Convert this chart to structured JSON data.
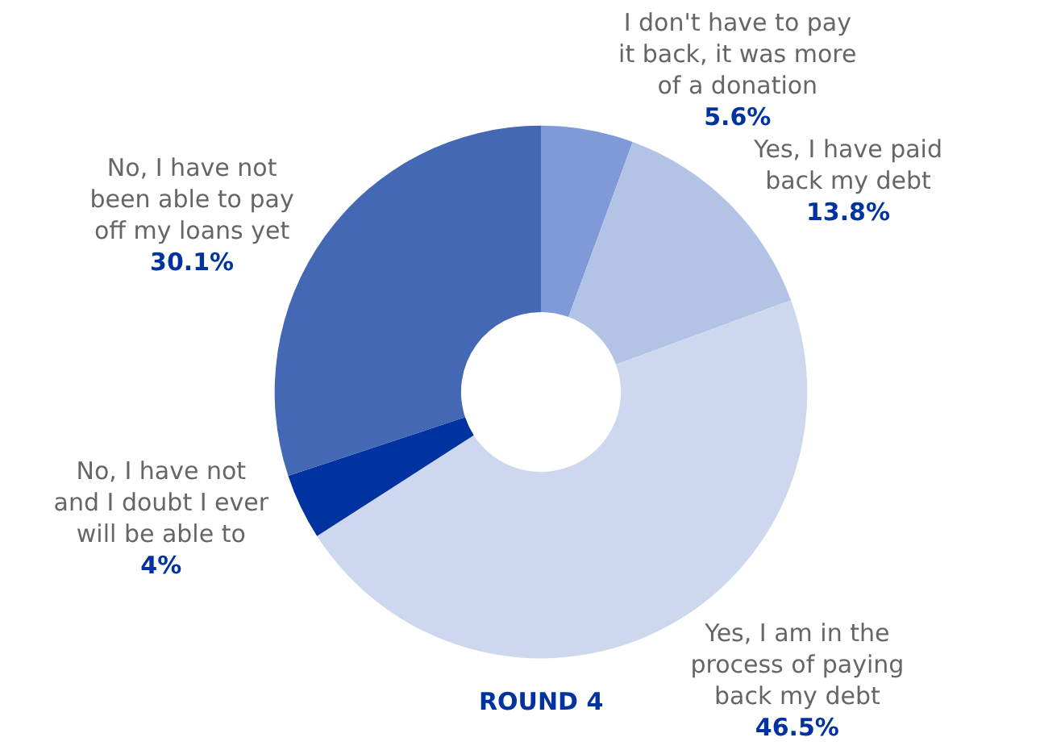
{
  "chart_data": {
    "type": "donut",
    "title": "ROUND 4",
    "categories": [
      "I don't have to pay\nit back, it was more\nof a donation",
      "Yes, I have paid\nback my debt",
      "Yes, I am in the\nprocess of paying\nback my debt",
      "No, I have not\nand I doubt I ever\nwill be able to",
      "No, I have not\nbeen able to pay\noff my loans yet"
    ],
    "values": [
      5.6,
      13.8,
      46.5,
      4,
      30.1
    ],
    "value_labels": [
      "5.6%",
      "13.8%",
      "46.5%",
      "4%",
      "30.1%"
    ],
    "colors": [
      "#7f9ad6",
      "#b3c3e6",
      "#cdd8ee",
      "#0033a0",
      "#4468b4"
    ],
    "legend": false
  }
}
